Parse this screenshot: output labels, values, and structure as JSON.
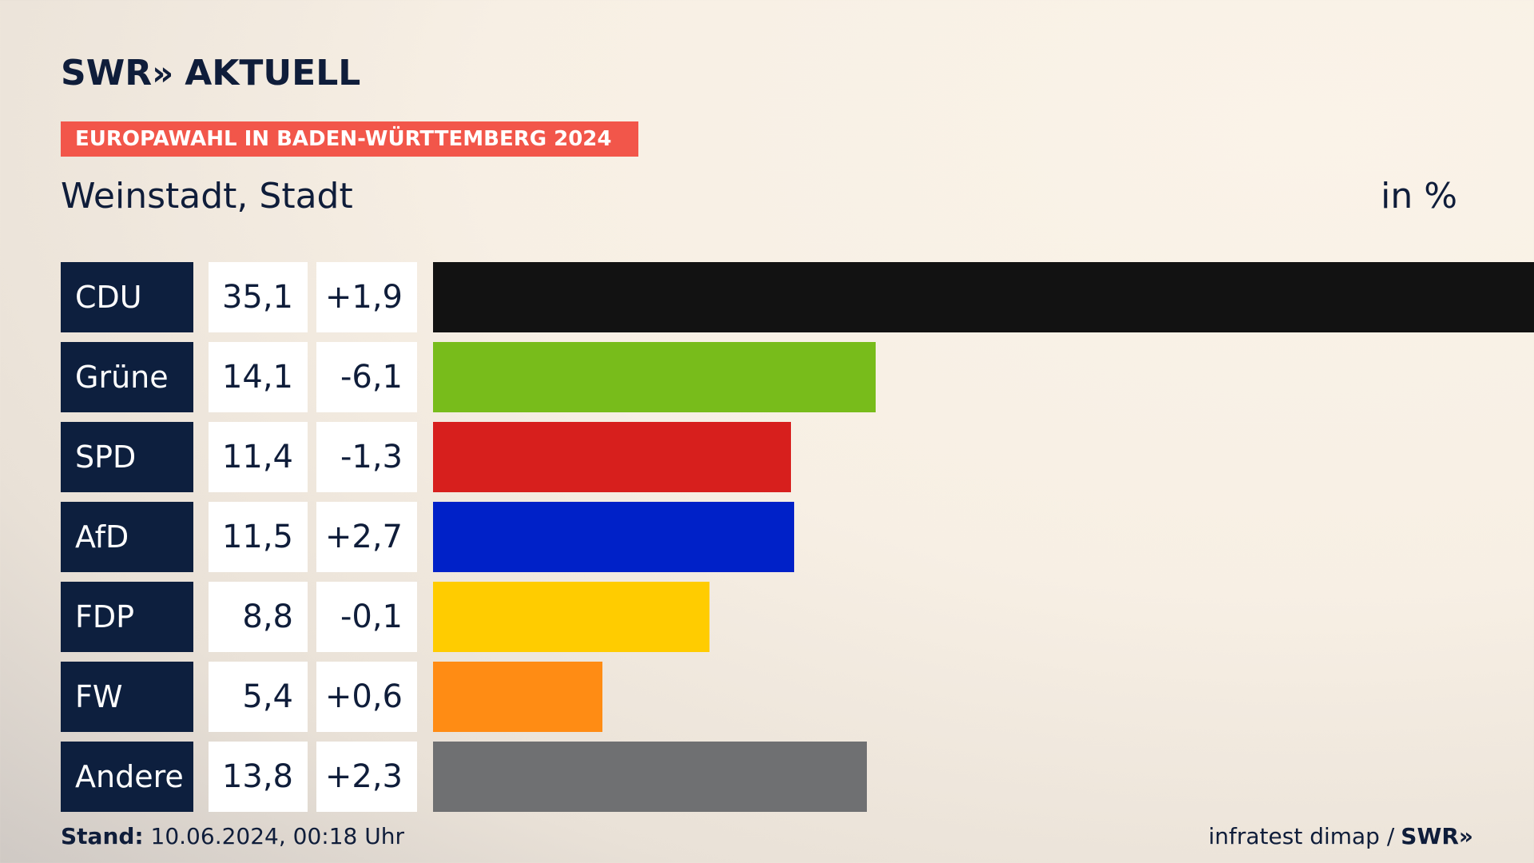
{
  "header": {
    "logo_text": "SWR",
    "logo_chevron": "»",
    "logo_suffix": "AKTUELL",
    "tagline": "EUROPAWAHL IN BADEN-WÜRTTEMBERG 2024",
    "subtitle": "Weinstadt, Stadt",
    "unit": "in %"
  },
  "colors": {
    "navy": "#0d1f3e",
    "tagline_bg": "#f2564a",
    "CDU": "#121212",
    "Grüne": "#78bc1b",
    "SPD": "#d71f1d",
    "AfD": "#0021c8",
    "FDP": "#ffcc00",
    "FW": "#ff8c14",
    "Andere": "#6f7072"
  },
  "chart_data": {
    "type": "bar",
    "categories": [
      "CDU",
      "Grüne",
      "SPD",
      "AfD",
      "FDP",
      "FW",
      "Andere"
    ],
    "values": [
      35.1,
      14.1,
      11.4,
      11.5,
      8.8,
      5.4,
      13.8
    ],
    "value_labels": [
      "35,1",
      "14,1",
      "11,4",
      "11,5",
      "8,8",
      "5,4",
      "13,8"
    ],
    "diff_labels": [
      "+1,9",
      "-6,1",
      "-1,3",
      "+2,7",
      "-0,1",
      "+0,6",
      "+2,3"
    ],
    "orientation": "horizontal",
    "xlim": [
      0,
      35.1
    ]
  },
  "footer": {
    "stand_label": "Stand:",
    "stand_value": "10.06.2024, 00:18 Uhr",
    "source": "infratest dimap /",
    "source_logo": "SWR»"
  }
}
